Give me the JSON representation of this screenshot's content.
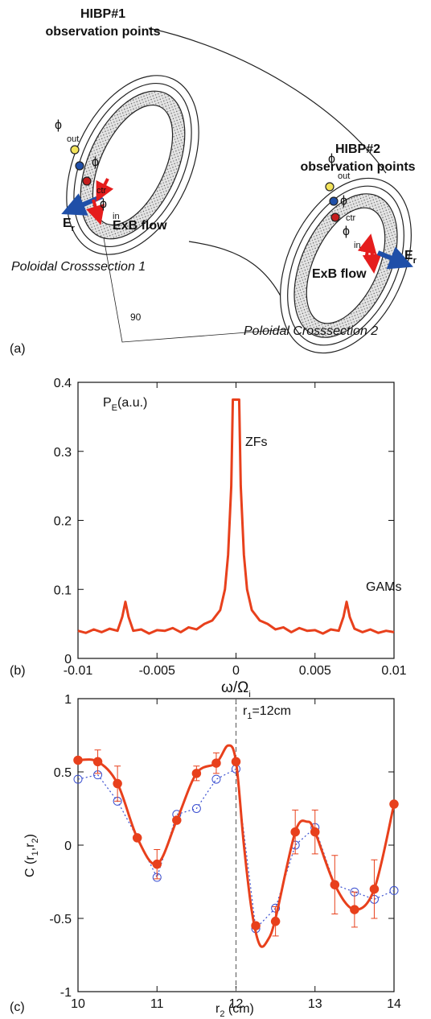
{
  "diagram": {
    "hibp1": [
      "HIBP#1",
      "observation points"
    ],
    "hibp2": [
      "HIBP#2",
      "observation points"
    ],
    "phi": "ϕ",
    "phi_subs": [
      "out",
      "ctr",
      "in"
    ],
    "flow": "ExB flow",
    "er": [
      "E",
      "r"
    ],
    "section1": "Poloidal Crosssection 1",
    "section2": "Poloidal Crosssection 2",
    "angle": "90",
    "panel_label": "(a)"
  },
  "chart_data": [
    {
      "type": "line",
      "panel_label": "(b)",
      "x_label": [
        "ω/Ω",
        "i"
      ],
      "y_label": [
        "P",
        "E",
        "(a.u.)"
      ],
      "annotations": [
        "ZFs",
        "GAMs"
      ],
      "xlim": [
        -0.01,
        0.01
      ],
      "ylim": [
        0,
        0.4
      ],
      "xticks": [
        -0.01,
        -0.005,
        0,
        0.005,
        0.01
      ],
      "yticks": [
        0,
        0.1,
        0.2,
        0.3,
        0.4
      ],
      "series": [
        {
          "color": "#e8401c",
          "line": "solid",
          "marker": "none",
          "x": [
            -0.01,
            -0.0095,
            -0.009,
            -0.0085,
            -0.008,
            -0.0075,
            -0.0072,
            -0.007,
            -0.0068,
            -0.0065,
            -0.006,
            -0.0055,
            -0.005,
            -0.0045,
            -0.004,
            -0.0035,
            -0.003,
            -0.0025,
            -0.002,
            -0.0015,
            -0.001,
            -0.0007,
            -0.0005,
            -0.0003,
            -0.0002,
            -0.0001,
            0,
            0.0001,
            0.0002,
            0.0003,
            0.0005,
            0.0007,
            0.001,
            0.0015,
            0.002,
            0.0025,
            0.003,
            0.0035,
            0.004,
            0.0045,
            0.005,
            0.0055,
            0.006,
            0.0065,
            0.0068,
            0.007,
            0.0072,
            0.0075,
            0.008,
            0.0085,
            0.009,
            0.0095,
            0.01
          ],
          "values": [
            0.04,
            0.037,
            0.042,
            0.038,
            0.043,
            0.04,
            0.06,
            0.082,
            0.06,
            0.04,
            0.042,
            0.036,
            0.041,
            0.04,
            0.044,
            0.038,
            0.045,
            0.042,
            0.05,
            0.055,
            0.07,
            0.1,
            0.15,
            0.25,
            0.375,
            0.375,
            0.375,
            0.375,
            0.375,
            0.25,
            0.15,
            0.1,
            0.07,
            0.055,
            0.05,
            0.042,
            0.045,
            0.038,
            0.044,
            0.04,
            0.041,
            0.036,
            0.042,
            0.04,
            0.06,
            0.082,
            0.06,
            0.043,
            0.038,
            0.042,
            0.037,
            0.04,
            0.038
          ]
        }
      ]
    },
    {
      "type": "line",
      "panel_label": "(c)",
      "x_label": [
        "r",
        "2",
        " (cm)"
      ],
      "y_label": [
        "C (r",
        "1",
        ",r",
        "2",
        ")"
      ],
      "annotation": [
        "r",
        "1",
        "=12cm"
      ],
      "ref_x": 12,
      "xlim": [
        10,
        14
      ],
      "ylim": [
        -1,
        1
      ],
      "xticks": [
        10,
        11,
        12,
        13,
        14
      ],
      "yticks": [
        -1,
        -0.5,
        0,
        0.5,
        1
      ],
      "series": [
        {
          "color": "#3a4fd0",
          "line": "dotted",
          "marker": "open",
          "x": [
            10,
            10.25,
            10.5,
            10.75,
            11,
            11.25,
            11.5,
            11.75,
            12,
            12.25,
            12.5,
            12.75,
            13,
            13.25,
            13.5,
            13.75,
            14
          ],
          "values": [
            0.45,
            0.48,
            0.3,
            0.05,
            -0.22,
            0.21,
            0.25,
            0.45,
            0.52,
            -0.57,
            -0.43,
            0,
            0.12,
            -0.27,
            -0.32,
            -0.37,
            -0.31
          ]
        },
        {
          "color": "#e8401c",
          "line": "smooth",
          "marker": "none",
          "x": [
            10,
            10.25,
            10.5,
            10.75,
            11,
            11.25,
            11.5,
            11.75,
            11.9,
            12,
            12.1,
            12.2,
            12.3,
            12.4,
            12.5,
            12.75,
            12.9,
            13,
            13.25,
            13.5,
            13.75,
            14
          ],
          "values": [
            0.58,
            0.57,
            0.42,
            0.05,
            -0.13,
            0.17,
            0.49,
            0.56,
            0.68,
            0.57,
            0,
            -0.45,
            -0.68,
            -0.65,
            -0.5,
            0.09,
            0.16,
            0.09,
            -0.27,
            -0.44,
            -0.3,
            0.28
          ]
        },
        {
          "color": "#e8401c",
          "line": "none",
          "marker": "filled",
          "x": [
            10,
            10.25,
            10.5,
            10.75,
            11,
            11.25,
            11.5,
            11.75,
            12,
            12.25,
            12.5,
            12.75,
            13,
            13.25,
            13.5,
            13.75,
            14
          ],
          "values": [
            0.58,
            0.57,
            0.42,
            0.05,
            -0.13,
            0.17,
            0.49,
            0.56,
            0.57,
            -0.55,
            -0.52,
            0.09,
            0.09,
            -0.27,
            -0.44,
            -0.3,
            0.28
          ],
          "errors": [
            null,
            0.08,
            0.12,
            null,
            0.1,
            null,
            0.05,
            0.07,
            null,
            null,
            0.1,
            0.15,
            0.15,
            0.2,
            0.12,
            0.2,
            null
          ]
        }
      ]
    }
  ]
}
